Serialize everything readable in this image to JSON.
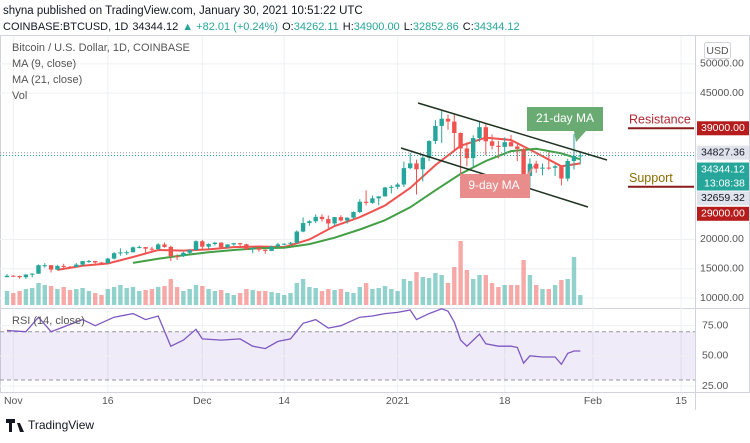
{
  "header": {
    "published": "shyna published on TradingView.com, January 30, 2021 10:51:22 UTC",
    "symbol": "COINBASE:BTCUSD, 1D",
    "price": "34344.12",
    "change": "▲ +82.01 (+0.24%)",
    "ohlc": [
      {
        "key": "O:",
        "value": "34262.11"
      },
      {
        "key": "H:",
        "value": "34900.00"
      },
      {
        "key": "L:",
        "value": "32852.86"
      },
      {
        "key": "C:",
        "value": "34344.12"
      }
    ]
  },
  "footer": {
    "brand": "TradingView"
  },
  "chart_data": {
    "type": "candlestick",
    "title": "Bitcoin / U.S. Dollar, 1D, COINBASE",
    "currency": "USD",
    "up_color": "#26a69a",
    "down_color": "#ef5350",
    "grid": true,
    "categories": [
      "Oct 31",
      "Nov 1",
      "Nov 2",
      "Nov 3",
      "Nov 4",
      "Nov 5",
      "Nov 6",
      "Nov 7",
      "Nov 8",
      "Nov 9",
      "Nov 10",
      "Nov 11",
      "Nov 12",
      "Nov 13",
      "Nov 14",
      "Nov 15",
      "Nov 16",
      "Nov 17",
      "Nov 18",
      "Nov 19",
      "Nov 20",
      "Nov 21",
      "Nov 22",
      "Nov 23",
      "Nov 24",
      "Nov 25",
      "Nov 26",
      "Nov 27",
      "Nov 28",
      "Nov 29",
      "Nov 30",
      "Dec 1",
      "Dec 2",
      "Dec 3",
      "Dec 4",
      "Dec 5",
      "Dec 6",
      "Dec 7",
      "Dec 8",
      "Dec 9",
      "Dec 10",
      "Dec 11",
      "Dec 12",
      "Dec 13",
      "Dec 14",
      "Dec 15",
      "Dec 16",
      "Dec 17",
      "Dec 18",
      "Dec 19",
      "Dec 20",
      "Dec 21",
      "Dec 22",
      "Dec 23",
      "Dec 24",
      "Dec 25",
      "Dec 26",
      "Dec 27",
      "Dec 28",
      "Dec 29",
      "Dec 30",
      "Dec 31",
      "Jan 1",
      "Jan 2",
      "Jan 3",
      "Jan 4",
      "Jan 5",
      "Jan 6",
      "Jan 7",
      "Jan 8",
      "Jan 9",
      "Jan 10",
      "Jan 11",
      "Jan 12",
      "Jan 13",
      "Jan 14",
      "Jan 15",
      "Jan 16",
      "Jan 17",
      "Jan 18",
      "Jan 19",
      "Jan 20",
      "Jan 21",
      "Jan 22",
      "Jan 23",
      "Jan 24",
      "Jan 25",
      "Jan 26",
      "Jan 27",
      "Jan 28",
      "Jan 29",
      "Jan 30"
    ],
    "ohlc": [
      [
        13560,
        14080,
        13530,
        13800
      ],
      [
        13800,
        13900,
        13620,
        13750
      ],
      [
        13750,
        13830,
        13290,
        13550
      ],
      [
        13550,
        14070,
        13280,
        14000
      ],
      [
        14000,
        14250,
        13530,
        14150
      ],
      [
        14150,
        15750,
        14090,
        15600
      ],
      [
        15600,
        15960,
        15190,
        15600
      ],
      [
        15600,
        15640,
        14350,
        14850
      ],
      [
        14850,
        15650,
        14740,
        15480
      ],
      [
        15480,
        15840,
        14840,
        15330
      ],
      [
        15330,
        15460,
        15070,
        15300
      ],
      [
        15300,
        15970,
        15280,
        15700
      ],
      [
        15700,
        16340,
        15440,
        16300
      ],
      [
        16300,
        16480,
        15990,
        16330
      ],
      [
        16330,
        16330,
        15800,
        16070
      ],
      [
        16070,
        16180,
        15800,
        15960
      ],
      [
        15960,
        16870,
        15890,
        16730
      ],
      [
        16730,
        17850,
        16560,
        17650
      ],
      [
        17650,
        18480,
        17230,
        17780
      ],
      [
        17780,
        18110,
        17350,
        17820
      ],
      [
        17820,
        18800,
        17760,
        18660
      ],
      [
        18660,
        18960,
        18500,
        18700
      ],
      [
        18700,
        18740,
        17680,
        18420
      ],
      [
        18420,
        18760,
        18000,
        18370
      ],
      [
        18370,
        19390,
        18150,
        19150
      ],
      [
        19150,
        19480,
        18580,
        18730
      ],
      [
        18730,
        18920,
        16300,
        17150
      ],
      [
        17150,
        17460,
        16480,
        17140
      ],
      [
        17140,
        17900,
        17000,
        17720
      ],
      [
        17720,
        18350,
        17500,
        18180
      ],
      [
        18180,
        19850,
        18180,
        19700
      ],
      [
        19700,
        19920,
        18320,
        18770
      ],
      [
        18770,
        19340,
        18350,
        19220
      ],
      [
        19220,
        19590,
        18950,
        19450
      ],
      [
        19450,
        19530,
        18570,
        18650
      ],
      [
        18650,
        19180,
        18500,
        19150
      ],
      [
        19150,
        19420,
        18930,
        19360
      ],
      [
        19360,
        19420,
        18900,
        19170
      ],
      [
        19170,
        19290,
        18200,
        18320
      ],
      [
        18320,
        18640,
        17640,
        18550
      ],
      [
        18550,
        18560,
        17910,
        18250
      ],
      [
        18250,
        18290,
        17570,
        18040
      ],
      [
        18040,
        18950,
        18020,
        18800
      ],
      [
        18800,
        19410,
        18750,
        19170
      ],
      [
        19170,
        19350,
        19000,
        19270
      ],
      [
        19270,
        19560,
        19060,
        19440
      ],
      [
        19440,
        21560,
        19300,
        21350
      ],
      [
        21350,
        23770,
        21230,
        22800
      ],
      [
        22800,
        23300,
        22350,
        23110
      ],
      [
        23110,
        24300,
        22800,
        23860
      ],
      [
        23860,
        24300,
        23080,
        23480
      ],
      [
        23480,
        24100,
        21900,
        22740
      ],
      [
        22740,
        23840,
        22350,
        23820
      ],
      [
        23820,
        24150,
        23060,
        23240
      ],
      [
        23240,
        23790,
        22700,
        23730
      ],
      [
        23730,
        24790,
        23460,
        24690
      ],
      [
        24690,
        26880,
        24520,
        26440
      ],
      [
        26440,
        28400,
        25820,
        26250
      ],
      [
        26250,
        27500,
        26100,
        27030
      ],
      [
        27030,
        27400,
        25850,
        27360
      ],
      [
        27360,
        29000,
        27320,
        28880
      ],
      [
        28880,
        29300,
        27850,
        28990
      ],
      [
        28990,
        29680,
        28630,
        29390
      ],
      [
        29390,
        33300,
        28950,
        32190
      ],
      [
        32190,
        34800,
        32000,
        33000
      ],
      [
        33000,
        33650,
        27680,
        31990
      ],
      [
        31990,
        34440,
        29900,
        33980
      ],
      [
        33980,
        36950,
        33400,
        36820
      ],
      [
        36820,
        40400,
        36300,
        39400
      ],
      [
        39400,
        41970,
        36500,
        40630
      ],
      [
        40630,
        41350,
        38750,
        40150
      ],
      [
        40150,
        41400,
        35100,
        38190
      ],
      [
        38190,
        38300,
        30400,
        35550
      ],
      [
        35550,
        36600,
        32500,
        33900
      ],
      [
        33900,
        37800,
        32400,
        37320
      ],
      [
        37320,
        40100,
        36700,
        39190
      ],
      [
        39190,
        39700,
        34400,
        36770
      ],
      [
        36770,
        37950,
        35400,
        36010
      ],
      [
        36010,
        36850,
        33850,
        35820
      ],
      [
        35820,
        37450,
        34800,
        36630
      ],
      [
        36630,
        37850,
        35880,
        35890
      ],
      [
        35890,
        36400,
        33400,
        35470
      ],
      [
        35470,
        35600,
        30070,
        30850
      ],
      [
        30850,
        33850,
        28850,
        32940
      ],
      [
        32940,
        33450,
        31400,
        32100
      ],
      [
        32100,
        32950,
        30950,
        32280
      ],
      [
        32280,
        34880,
        31950,
        32250
      ],
      [
        32250,
        32800,
        30850,
        32510
      ],
      [
        32510,
        32560,
        29240,
        30410
      ],
      [
        30410,
        33800,
        29950,
        33410
      ],
      [
        33410,
        38000,
        31950,
        34262.11
      ],
      [
        34262.11,
        34900,
        32852.86,
        34344.12
      ]
    ],
    "volume": {
      "name": "Vol",
      "values": [
        14,
        12,
        14,
        16,
        17,
        22,
        20,
        19,
        16,
        18,
        15,
        16,
        17,
        14,
        12,
        10,
        16,
        18,
        20,
        17,
        18,
        14,
        15,
        16,
        18,
        19,
        26,
        18,
        14,
        16,
        20,
        19,
        16,
        14,
        15,
        12,
        10,
        12,
        16,
        15,
        14,
        14,
        13,
        12,
        10,
        12,
        22,
        26,
        18,
        17,
        14,
        16,
        15,
        16,
        13,
        12,
        18,
        22,
        16,
        17,
        19,
        16,
        14,
        26,
        24,
        33,
        28,
        27,
        32,
        30,
        22,
        38,
        64,
        35,
        26,
        30,
        30,
        22,
        18,
        20,
        20,
        20,
        45,
        30,
        20,
        16,
        16,
        20,
        25,
        26,
        48,
        10
      ]
    },
    "series": [
      {
        "name": "MA (9, close)",
        "color": "#ef5350",
        "x": [
          "Nov 8",
          "Nov 12",
          "Nov 16",
          "Nov 20",
          "Nov 24",
          "Nov 28",
          "Dec 2",
          "Dec 6",
          "Dec 10",
          "Dec 14",
          "Dec 18",
          "Dec 22",
          "Dec 26",
          "Dec 30",
          "Jan 3",
          "Jan 7",
          "Jan 11",
          "Jan 15",
          "Jan 19",
          "Jan 23",
          "Jan 27",
          "Jan 30"
        ],
        "values": [
          14800,
          15500,
          15900,
          17000,
          18200,
          18100,
          18300,
          18700,
          18800,
          18700,
          20000,
          22300,
          23800,
          25800,
          28800,
          32700,
          36000,
          37400,
          37000,
          34800,
          32500,
          33000
        ]
      },
      {
        "name": "MA (21, close)",
        "color": "#43a047",
        "x": [
          "Nov 20",
          "Nov 24",
          "Nov 28",
          "Dec 2",
          "Dec 6",
          "Dec 10",
          "Dec 14",
          "Dec 18",
          "Dec 22",
          "Dec 26",
          "Dec 30",
          "Jan 3",
          "Jan 7",
          "Jan 11",
          "Jan 15",
          "Jan 19",
          "Jan 23",
          "Jan 27",
          "Jan 30"
        ],
        "values": [
          16000,
          16700,
          17300,
          17800,
          18200,
          18500,
          18600,
          19200,
          20300,
          21700,
          23300,
          25500,
          28400,
          31200,
          33400,
          35100,
          35500,
          34700,
          33700
        ]
      }
    ],
    "ylim": [
      8800,
      54770
    ],
    "yticks": [
      {
        "value": 50000,
        "label": "50000.00"
      },
      {
        "value": 45000,
        "label": "45000.00"
      },
      {
        "value": 20000,
        "label": "20000.00"
      },
      {
        "value": 15000,
        "label": "15000.00"
      },
      {
        "value": 10000,
        "label": "10000.00"
      }
    ],
    "xticks": [
      {
        "value": "Nov 1",
        "label": "Nov"
      },
      {
        "value": "Nov 16",
        "label": "16"
      },
      {
        "value": "Dec 1",
        "label": "Dec"
      },
      {
        "value": "Dec 14",
        "label": "14"
      },
      {
        "value": "Jan 1",
        "label": "2021"
      },
      {
        "value": "Jan 18",
        "label": "18"
      },
      {
        "value": "Feb 1",
        "label": "Feb"
      },
      {
        "value": "Feb 15",
        "label": "15"
      }
    ],
    "price_labels": [
      {
        "value": 39000,
        "label": "39000.00",
        "color": "#b71c1c",
        "text_color": "#ffffff"
      },
      {
        "value": 34827.36,
        "label": "34827.36",
        "color": "#e0e3eb",
        "text_color": "#131722",
        "dotted": true
      },
      {
        "value": 34344.12,
        "label": "34344.12",
        "color": "#26a69a",
        "text_color": "#ffffff",
        "dotted": true,
        "countdown": "13:08:38"
      },
      {
        "value": 32659.32,
        "label": "32659.32",
        "color": "#e0e3eb",
        "text_color": "#131722"
      },
      {
        "value": 29000,
        "label": "29000.00",
        "color": "#b71c1c",
        "text_color": "#ffffff"
      }
    ],
    "levels": [
      {
        "value": 39000,
        "label": "Resistance",
        "color": "#b22833"
      },
      {
        "value": 29000,
        "label": "Support",
        "color": "#8a6d00"
      }
    ],
    "annotations": [
      {
        "text": "21-day MA",
        "color": "#6aab73"
      },
      {
        "text": "9-day MA",
        "color": "#e88c8c"
      }
    ],
    "rsi": {
      "name": "RSI (14, close)",
      "color": "#7e57c2",
      "x": [
        "Oct 31",
        "Nov 3",
        "Nov 5",
        "Nov 7",
        "Nov 9",
        "Nov 12",
        "Nov 14",
        "Nov 17",
        "Nov 20",
        "Nov 22",
        "Nov 24",
        "Nov 26",
        "Nov 28",
        "Nov 30",
        "Dec 1",
        "Dec 4",
        "Dec 7",
        "Dec 9",
        "Dec 11",
        "Dec 13",
        "Dec 15",
        "Dec 17",
        "Dec 19",
        "Dec 21",
        "Dec 23",
        "Dec 26",
        "Dec 28",
        "Dec 30",
        "Jan 1",
        "Jan 3",
        "Jan 4",
        "Jan 6",
        "Jan 8",
        "Jan 9",
        "Jan 10",
        "Jan 11",
        "Jan 12",
        "Jan 14",
        "Jan 15",
        "Jan 17",
        "Jan 19",
        "Jan 20",
        "Jan 21",
        "Jan 22",
        "Jan 24",
        "Jan 26",
        "Jan 27",
        "Jan 28",
        "Jan 29",
        "Jan 30"
      ],
      "values": [
        71,
        70,
        82,
        70,
        74,
        80,
        75,
        82,
        85,
        80,
        83,
        58,
        63,
        72,
        64,
        63,
        64,
        58,
        56,
        62,
        64,
        77,
        80,
        73,
        75,
        82,
        83,
        85,
        86,
        88,
        80,
        85,
        89,
        87,
        78,
        63,
        58,
        68,
        60,
        58,
        58,
        57,
        44,
        50,
        49,
        49,
        43,
        52,
        54,
        54
      ],
      "ylim": [
        20,
        88
      ],
      "band": [
        30,
        70
      ],
      "yticks": [
        {
          "value": 75,
          "label": "75.00"
        },
        {
          "value": 50,
          "label": "50.00"
        },
        {
          "value": 25,
          "label": "25.00"
        }
      ]
    }
  }
}
